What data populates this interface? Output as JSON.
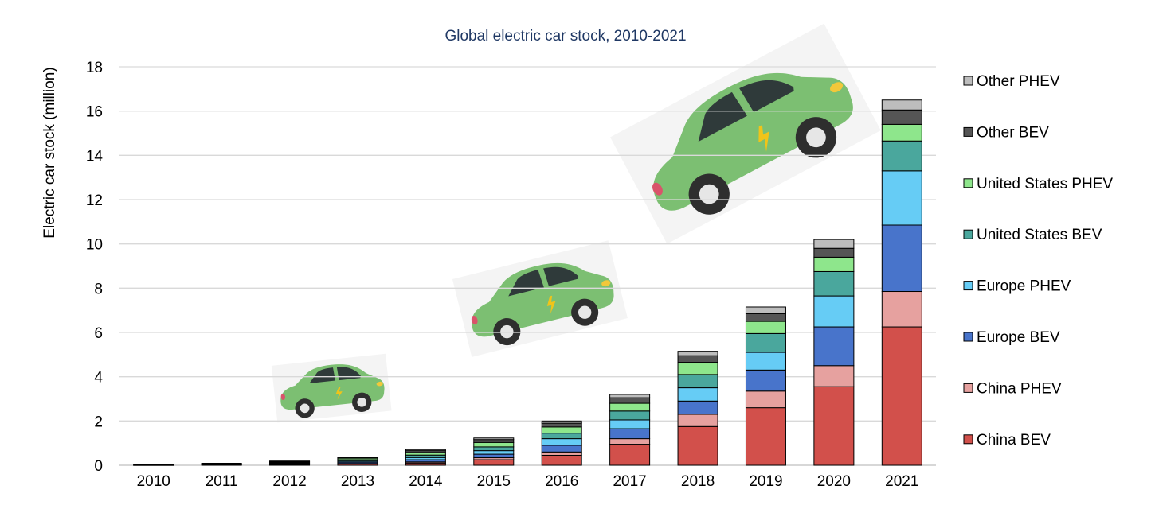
{
  "chart_data": {
    "type": "bar",
    "stacked": true,
    "title": "Global electric car stock, 2010-2021",
    "xlabel": "",
    "ylabel": "Electric car stock (million)",
    "ylim": [
      0,
      18
    ],
    "yticks": [
      0,
      2,
      4,
      6,
      8,
      10,
      12,
      14,
      16,
      18
    ],
    "grid": true,
    "legend_position": "right",
    "categories": [
      "2010",
      "2011",
      "2012",
      "2013",
      "2014",
      "2015",
      "2016",
      "2017",
      "2018",
      "2019",
      "2020",
      "2021"
    ],
    "series": [
      {
        "name": "China BEV",
        "color": "#d2504b",
        "values": [
          0.01,
          0.02,
          0.03,
          0.06,
          0.1,
          0.25,
          0.45,
          0.95,
          1.75,
          2.6,
          3.55,
          6.25
        ]
      },
      {
        "name": "China PHEV",
        "color": "#e6a19f",
        "values": [
          0.0,
          0.0,
          0.01,
          0.02,
          0.05,
          0.09,
          0.15,
          0.25,
          0.55,
          0.75,
          0.95,
          1.6
        ]
      },
      {
        "name": "Europe BEV",
        "color": "#4874cb",
        "values": [
          0.01,
          0.02,
          0.03,
          0.06,
          0.1,
          0.16,
          0.3,
          0.45,
          0.6,
          0.95,
          1.75,
          3.0
        ]
      },
      {
        "name": "Europe PHEV",
        "color": "#66ccf5",
        "values": [
          0.0,
          0.01,
          0.02,
          0.05,
          0.1,
          0.16,
          0.3,
          0.4,
          0.6,
          0.8,
          1.4,
          2.45
        ]
      },
      {
        "name": "United States BEV",
        "color": "#4aa79d",
        "values": [
          0.0,
          0.01,
          0.03,
          0.06,
          0.11,
          0.17,
          0.25,
          0.4,
          0.6,
          0.85,
          1.1,
          1.35
        ]
      },
      {
        "name": "United States PHEV",
        "color": "#8ee68c",
        "values": [
          0.0,
          0.01,
          0.03,
          0.07,
          0.12,
          0.2,
          0.28,
          0.35,
          0.55,
          0.55,
          0.65,
          0.75
        ]
      },
      {
        "name": "Other BEV",
        "color": "#555555",
        "values": [
          0.0,
          0.02,
          0.03,
          0.04,
          0.08,
          0.13,
          0.17,
          0.25,
          0.3,
          0.35,
          0.4,
          0.65
        ]
      },
      {
        "name": "Other PHEV",
        "color": "#bdbdbd",
        "values": [
          0.0,
          0.0,
          0.01,
          0.01,
          0.05,
          0.07,
          0.1,
          0.15,
          0.2,
          0.3,
          0.4,
          0.45
        ]
      }
    ]
  },
  "decorations": {
    "car_body_color": "#7cbf72",
    "car_roof_color": "#5aa257",
    "window_color": "#2f3a3a",
    "wheel_color": "#2e2e2e",
    "headlight_color": "#f2c83a",
    "taillight_color": "#d9546b",
    "bolt_color": "#f0c419",
    "car_icon": "electric-car-icon"
  }
}
